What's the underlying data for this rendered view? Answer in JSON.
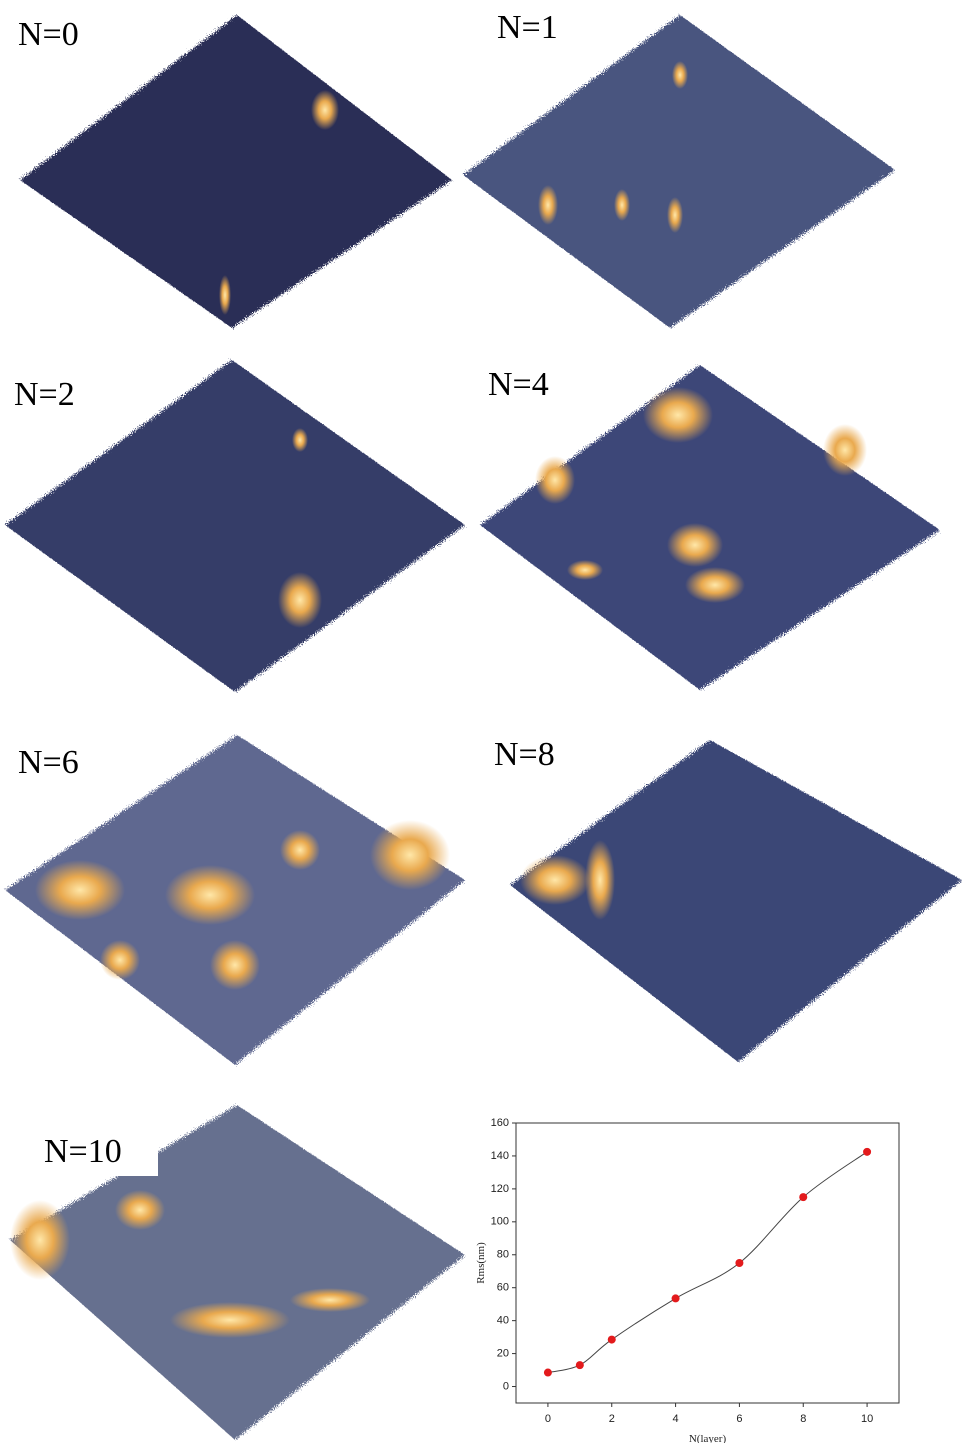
{
  "panels": {
    "labels": [
      "N=0",
      "N=1",
      "N=2",
      "N=4",
      "N=6",
      "N=8",
      "N=10"
    ]
  },
  "chart_data": {
    "type": "line",
    "x_label": "N(layer)",
    "y_label": "Rms(nm)",
    "x": [
      0,
      1,
      2,
      4,
      6,
      8,
      10
    ],
    "series": [
      {
        "name": "Rms",
        "color": "#e31a1c",
        "values": [
          8.5,
          13,
          28.5,
          53.5,
          75,
          115,
          142.5
        ]
      }
    ],
    "xlim": [
      -1,
      11
    ],
    "xticks": [
      0,
      2,
      4,
      6,
      8,
      10
    ],
    "ylim": [
      -10,
      160
    ],
    "yticks": [
      0,
      20,
      40,
      60,
      80,
      100,
      120,
      140,
      160
    ]
  }
}
